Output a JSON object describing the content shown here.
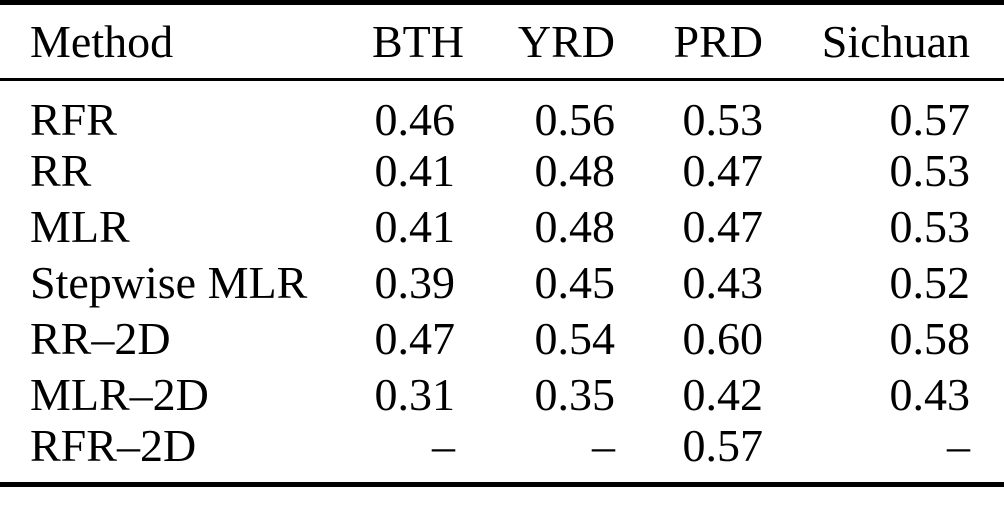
{
  "table": {
    "description": "Results table comparing regression methods across regions",
    "colors": {
      "text": "#000000",
      "background": "#ffffff",
      "rules": "#000000"
    },
    "columns": [
      "Method",
      "BTH",
      "YRD",
      "PRD",
      "Sichuan"
    ],
    "rows": [
      {
        "method": "RFR",
        "values": [
          "0.46",
          "0.56",
          "0.53",
          "0.57"
        ]
      },
      {
        "method": "RR",
        "values": [
          "0.41",
          "0.48",
          "0.47",
          "0.53"
        ]
      },
      {
        "method": "MLR",
        "values": [
          "0.41",
          "0.48",
          "0.47",
          "0.53"
        ]
      },
      {
        "method": "Stepwise MLR",
        "values": [
          "0.39",
          "0.45",
          "0.43",
          "0.52"
        ]
      },
      {
        "method": "RR–2D",
        "values": [
          "0.47",
          "0.54",
          "0.60",
          "0.58"
        ]
      },
      {
        "method": "MLR–2D",
        "values": [
          "0.31",
          "0.35",
          "0.42",
          "0.43"
        ]
      },
      {
        "method": "RFR–2D",
        "values": [
          "–",
          "–",
          "0.57",
          "–"
        ]
      }
    ]
  }
}
